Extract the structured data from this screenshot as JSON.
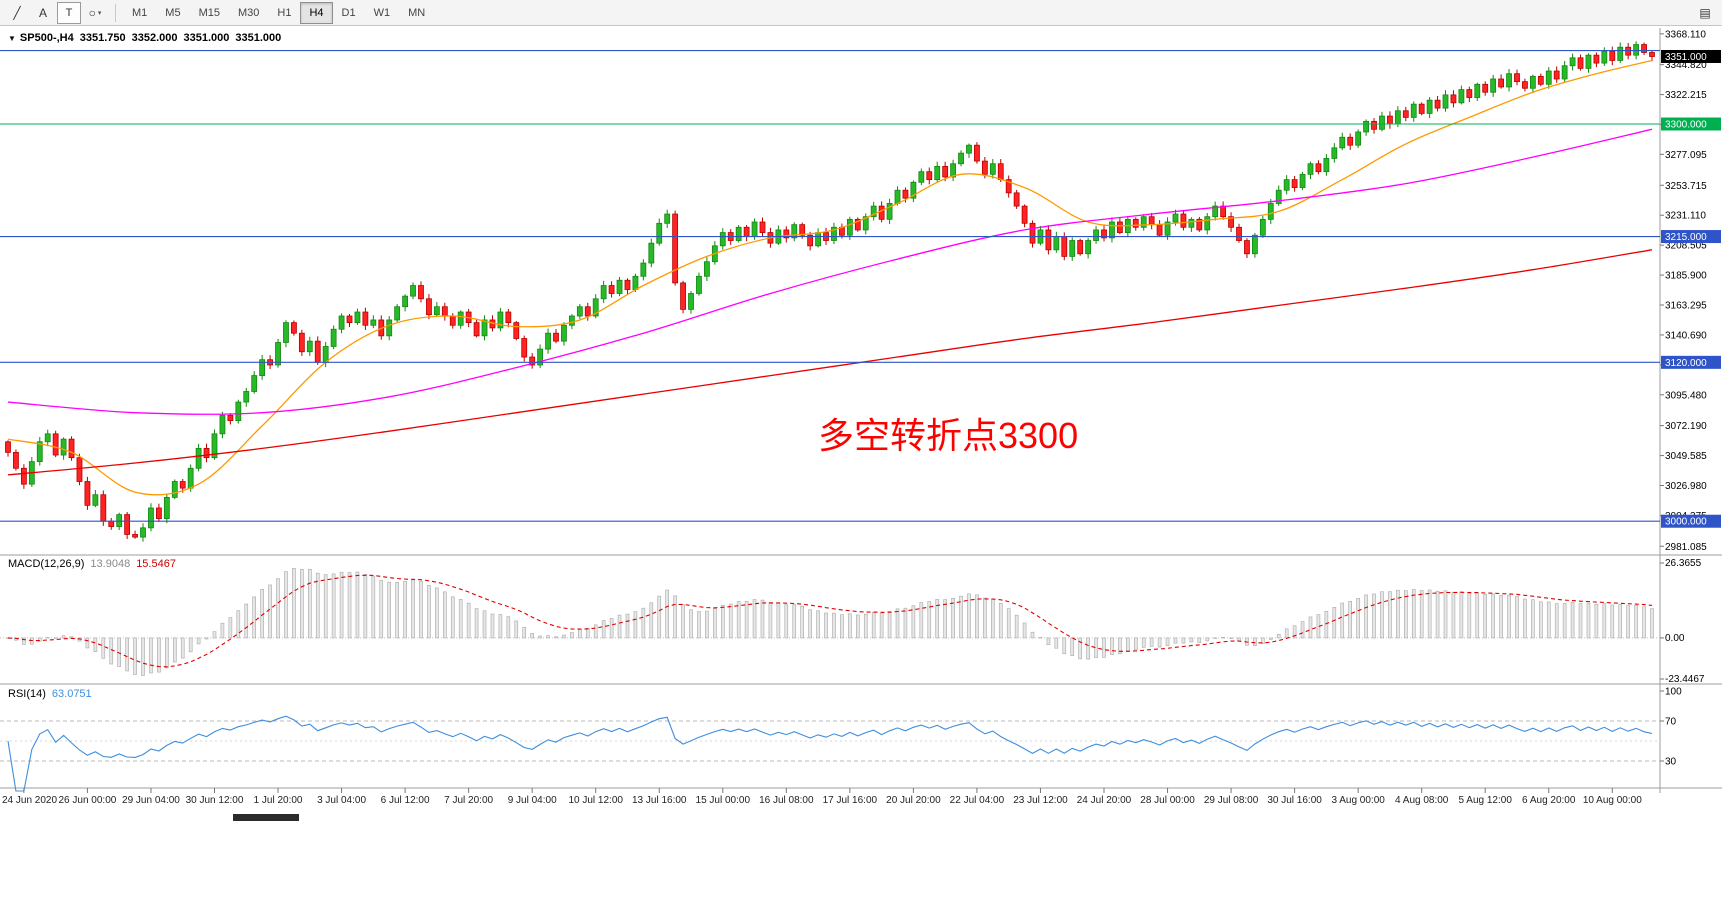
{
  "toolbar": {
    "tools": [
      {
        "id": "line-tool",
        "glyph": "╱"
      },
      {
        "id": "text-tool",
        "glyph": "A"
      },
      {
        "id": "textbox-tool",
        "glyph": "T"
      },
      {
        "id": "shapes-tool",
        "glyph": "○"
      }
    ],
    "shapes_caret": "▾",
    "timeframes": [
      "M1",
      "M5",
      "M15",
      "M30",
      "H1",
      "H4",
      "D1",
      "W1",
      "MN"
    ],
    "active_timeframe": "H4",
    "right_icon": "▤"
  },
  "chart": {
    "dropdown_glyph": "▼",
    "header": {
      "symbol_tf": "SP500-,H4",
      "open": "3351.750",
      "high": "3352.000",
      "low": "3351.000",
      "close": "3351.000"
    },
    "annotation": {
      "text": "多空转折点3300",
      "color": "#FF0000"
    },
    "macd_label": {
      "name": "MACD(12,26,9)",
      "main": "13.9048",
      "signal": "15.5467"
    },
    "rsi_label": {
      "name": "RSI(14)",
      "value": "63.0751"
    }
  },
  "chart_data": {
    "type": "candlestick",
    "symbol": "SP500-",
    "timeframe": "H4",
    "current_bar_ohlc": [
      3351.75,
      3352.0,
      3351.0,
      3351.0
    ],
    "current_price": 3351.0,
    "price_axis": {
      "range": {
        "max": 3371,
        "min": 2976
      },
      "ticks": [
        3368.11,
        3344.82,
        3322.215,
        3299.61,
        3277.095,
        3253.715,
        3231.11,
        3208.505,
        3185.9,
        3163.295,
        3140.69,
        3118.085,
        3095.48,
        3072.19,
        3049.585,
        3026.98,
        3004.375,
        2981.085
      ],
      "special_labels": [
        {
          "value": 3351.0,
          "text": "3351.000",
          "bg": "#000000"
        },
        {
          "value": 3300.0,
          "text": "3300.000",
          "bg": "#00B050"
        },
        {
          "value": 3215.0,
          "text": "3215.000",
          "bg": "#2F54C8"
        },
        {
          "value": 3120.0,
          "text": "3120.000",
          "bg": "#2F54C8"
        },
        {
          "value": 3000.0,
          "text": "3000.000",
          "bg": "#2F54C8"
        }
      ]
    },
    "hlines": [
      {
        "price": 3355.5,
        "color": "#2F54C8"
      },
      {
        "price": 3300.0,
        "color": "#00B050"
      },
      {
        "price": 3215.0,
        "color": "#2F54C8"
      },
      {
        "price": 3120.0,
        "color": "#2F54C8"
      },
      {
        "price": 3000.0,
        "color": "#2F54C8"
      }
    ],
    "x_labels": [
      "24 Jun 2020",
      "26 Jun 00:00",
      "29 Jun 04:00",
      "30 Jun 12:00",
      "1 Jul 20:00",
      "3 Jul 04:00",
      "6 Jul 12:00",
      "7 Jul 20:00",
      "9 Jul 04:00",
      "10 Jul 12:00",
      "13 Jul 16:00",
      "15 Jul 00:00",
      "16 Jul 08:00",
      "17 Jul 16:00",
      "20 Jul 20:00",
      "22 Jul 04:00",
      "23 Jul 12:00",
      "24 Jul 20:00",
      "28 Jul 00:00",
      "29 Jul 08:00",
      "30 Jul 16:00",
      "3 Aug 00:00",
      "4 Aug 08:00",
      "5 Aug 12:00",
      "6 Aug 20:00",
      "10 Aug 00:00"
    ],
    "bars_per_label": 8,
    "first_open": 3060,
    "closes": [
      3052,
      3040,
      3028,
      3045,
      3060,
      3066,
      3050,
      3062,
      3048,
      3030,
      3012,
      3020,
      3000,
      2996,
      3005,
      2990,
      2988,
      2995,
      3010,
      3002,
      3018,
      3030,
      3025,
      3040,
      3055,
      3048,
      3066,
      3080,
      3076,
      3090,
      3098,
      3110,
      3122,
      3118,
      3135,
      3150,
      3142,
      3128,
      3136,
      3120,
      3132,
      3145,
      3155,
      3150,
      3158,
      3148,
      3152,
      3140,
      3152,
      3162,
      3170,
      3178,
      3168,
      3156,
      3162,
      3155,
      3148,
      3158,
      3150,
      3140,
      3152,
      3146,
      3158,
      3150,
      3138,
      3124,
      3118,
      3130,
      3142,
      3136,
      3148,
      3155,
      3162,
      3155,
      3168,
      3178,
      3172,
      3182,
      3175,
      3185,
      3195,
      3210,
      3225,
      3232,
      3180,
      3160,
      3172,
      3185,
      3196,
      3208,
      3218,
      3212,
      3222,
      3215,
      3226,
      3218,
      3210,
      3220,
      3214,
      3224,
      3216,
      3208,
      3218,
      3212,
      3222,
      3216,
      3228,
      3220,
      3230,
      3238,
      3228,
      3240,
      3250,
      3244,
      3256,
      3264,
      3258,
      3268,
      3260,
      3270,
      3278,
      3284,
      3272,
      3262,
      3270,
      3258,
      3248,
      3238,
      3225,
      3210,
      3220,
      3205,
      3215,
      3200,
      3212,
      3202,
      3212,
      3220,
      3214,
      3226,
      3218,
      3228,
      3222,
      3230,
      3224,
      3216,
      3226,
      3232,
      3222,
      3228,
      3220,
      3230,
      3238,
      3230,
      3222,
      3212,
      3202,
      3216,
      3228,
      3240,
      3250,
      3258,
      3252,
      3262,
      3270,
      3264,
      3274,
      3282,
      3290,
      3284,
      3294,
      3302,
      3296,
      3306,
      3300,
      3310,
      3305,
      3315,
      3308,
      3318,
      3312,
      3322,
      3316,
      3326,
      3320,
      3330,
      3324,
      3334,
      3328,
      3338,
      3332,
      3327,
      3336,
      3330,
      3340,
      3334,
      3344,
      3350,
      3342,
      3352,
      3346,
      3355,
      3348,
      3358,
      3352,
      3360,
      3354,
      3351
    ],
    "bull": {
      "fill": "#28B928",
      "stroke": "#128812"
    },
    "bear": {
      "fill": "#FF2323",
      "stroke": "#B80000"
    },
    "moving_averages": [
      {
        "name": "ma-fast",
        "color": "#FF9900",
        "points": [
          [
            0,
            3062
          ],
          [
            8,
            3052
          ],
          [
            16,
            3022
          ],
          [
            24,
            3028
          ],
          [
            32,
            3072
          ],
          [
            40,
            3120
          ],
          [
            48,
            3148
          ],
          [
            56,
            3155
          ],
          [
            64,
            3147
          ],
          [
            72,
            3152
          ],
          [
            80,
            3178
          ],
          [
            88,
            3200
          ],
          [
            96,
            3214
          ],
          [
            104,
            3220
          ],
          [
            112,
            3240
          ],
          [
            120,
            3262
          ],
          [
            128,
            3252
          ],
          [
            136,
            3226
          ],
          [
            144,
            3224
          ],
          [
            152,
            3228
          ],
          [
            160,
            3234
          ],
          [
            168,
            3258
          ],
          [
            176,
            3285
          ],
          [
            184,
            3305
          ],
          [
            192,
            3324
          ],
          [
            200,
            3338
          ],
          [
            207,
            3348
          ]
        ]
      },
      {
        "name": "ma-mid",
        "color": "#FF00FF",
        "points": [
          [
            0,
            3090
          ],
          [
            16,
            3082
          ],
          [
            32,
            3082
          ],
          [
            48,
            3094
          ],
          [
            64,
            3116
          ],
          [
            80,
            3142
          ],
          [
            96,
            3172
          ],
          [
            112,
            3198
          ],
          [
            128,
            3220
          ],
          [
            144,
            3232
          ],
          [
            160,
            3242
          ],
          [
            176,
            3255
          ],
          [
            192,
            3275
          ],
          [
            207,
            3296
          ]
        ]
      },
      {
        "name": "ma-slow",
        "color": "#E80000",
        "points": [
          [
            0,
            3035
          ],
          [
            16,
            3044
          ],
          [
            32,
            3055
          ],
          [
            48,
            3068
          ],
          [
            64,
            3082
          ],
          [
            80,
            3096
          ],
          [
            96,
            3110
          ],
          [
            112,
            3124
          ],
          [
            128,
            3138
          ],
          [
            144,
            3150
          ],
          [
            160,
            3163
          ],
          [
            176,
            3176
          ],
          [
            192,
            3190
          ],
          [
            207,
            3205
          ]
        ]
      }
    ],
    "macd": {
      "params": [
        12,
        26,
        9
      ],
      "display_main": "13.9048",
      "display_signal": "15.5467",
      "axis_labels": [
        {
          "text": "26.3655",
          "pos": "top"
        },
        {
          "text": "0.00",
          "pos": "zero"
        },
        {
          "text": "-23.4467",
          "pos": "bottom"
        }
      ],
      "hist_fill": "#e6e6e6",
      "hist_stroke": "#a8a8a8",
      "signal_color": "#E00000"
    },
    "rsi": {
      "period": 14,
      "display_value": "63.0751",
      "line_color": "#3E8EDE",
      "axis_labels": [
        {
          "text": "100",
          "value": 100
        },
        {
          "text": "70",
          "value": 70
        },
        {
          "text": "30",
          "value": 30
        }
      ],
      "levels": [
        {
          "value": 70,
          "dash": "4,3",
          "color": "#b9b9b9"
        },
        {
          "value": 50,
          "dash": "2,3",
          "color": "#d6d6d6"
        },
        {
          "value": 30,
          "dash": "4,3",
          "color": "#b9b9b9"
        }
      ]
    }
  }
}
